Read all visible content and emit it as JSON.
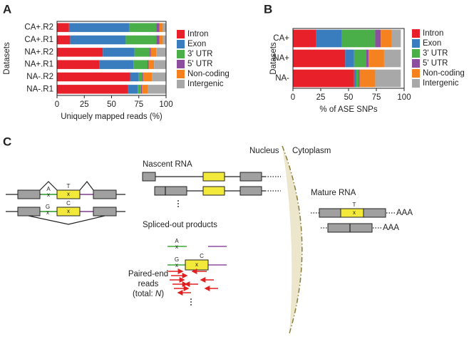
{
  "chart_data": [
    {
      "type": "hbar_stacked",
      "panel_label": "A",
      "ylabel": "Datasets",
      "xlabel": "Uniquely mapped reads (%)",
      "categories": [
        "CA+.R2",
        "CA+.R1",
        "NA+.R2",
        "NA+.R1",
        "NA-.R2",
        "NA-.R1"
      ],
      "xlim": [
        0,
        100
      ],
      "xticks": [
        0,
        25,
        50,
        75,
        100
      ],
      "legend": "right",
      "series": [
        {
          "name": "Intron",
          "color": "#e8202a",
          "values": [
            11,
            12,
            42,
            39,
            67,
            65
          ]
        },
        {
          "name": "Exon",
          "color": "#3a7dbf",
          "values": [
            55,
            51,
            29,
            31,
            8,
            9
          ]
        },
        {
          "name": "3' UTR",
          "color": "#4aaf48",
          "values": [
            25,
            28,
            14,
            13,
            3,
            3
          ]
        },
        {
          "name": "5' UTR",
          "color": "#8e4ea0",
          "values": [
            3,
            3,
            1,
            1,
            1,
            1
          ]
        },
        {
          "name": "Non-coding",
          "color": "#f6821f",
          "values": [
            3,
            3,
            5,
            5,
            8,
            5
          ]
        },
        {
          "name": "Intergenic",
          "color": "#a8a8a8",
          "values": [
            3,
            3,
            9,
            11,
            13,
            17
          ]
        }
      ]
    },
    {
      "type": "hbar_stacked",
      "panel_label": "B",
      "ylabel": "Datasets",
      "xlabel": "% of ASE SNPs",
      "categories": [
        "CA+",
        "NA+",
        "NA-"
      ],
      "xlim": [
        0,
        100
      ],
      "xticks": [
        0,
        25,
        50,
        75,
        100
      ],
      "legend": "right",
      "series": [
        {
          "name": "Intron",
          "color": "#e8202a",
          "values": [
            21,
            47,
            55
          ]
        },
        {
          "name": "Exon",
          "color": "#3a7dbf",
          "values": [
            23,
            8,
            2
          ]
        },
        {
          "name": "3' UTR",
          "color": "#4aaf48",
          "values": [
            30,
            11,
            2
          ]
        },
        {
          "name": "5' UTR",
          "color": "#8e4ea0",
          "values": [
            5,
            2,
            1
          ]
        },
        {
          "name": "Non-coding",
          "color": "#f6821f",
          "values": [
            10,
            14,
            14
          ]
        },
        {
          "name": "Intergenic",
          "color": "#a8a8a8",
          "values": [
            8,
            15,
            23
          ]
        }
      ]
    }
  ],
  "diagram": {
    "panel_label": "C",
    "nucleus": "Nucleus",
    "cytoplasm": "Cytoplasm",
    "nascent": "Nascent RNA",
    "mature": "Mature RNA",
    "spliced": "Spliced-out products",
    "reads_line1": "Paired-end",
    "reads_line2": "reads",
    "reads_total_prefix": "(total: ",
    "reads_total_var": "N",
    "reads_total_suffix": ")",
    "allele_A": "A",
    "allele_T": "T",
    "allele_G": "G",
    "allele_C": "C",
    "snp_mark": "x",
    "polya": "AAA"
  }
}
